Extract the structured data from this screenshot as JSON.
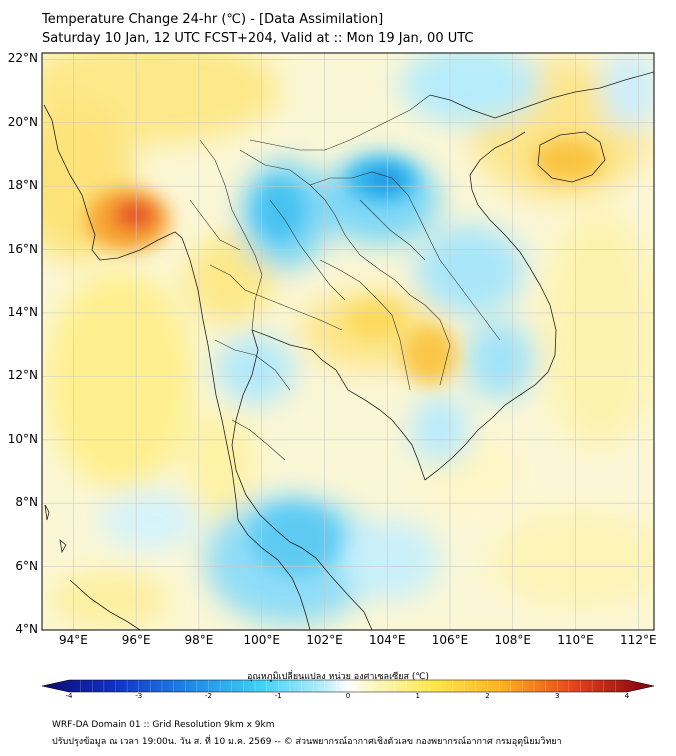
{
  "header": {
    "title": "Temperature Change 24-hr (℃) - [Data Assimilation]",
    "subtitle": "Saturday 10 Jan, 12 UTC FCST+204, Valid at :: Mon 19 Jan, 00 UTC"
  },
  "axes": {
    "lat_labels": [
      "22°N",
      "20°N",
      "18°N",
      "16°N",
      "14°N",
      "12°N",
      "10°N",
      "8°N",
      "6°N",
      "4°N"
    ],
    "lon_labels": [
      "94°E",
      "96°E",
      "98°E",
      "100°E",
      "102°E",
      "104°E",
      "106°E",
      "108°E",
      "110°E",
      "112°E"
    ],
    "lat_range": [
      4,
      22.2
    ],
    "lon_range": [
      93,
      112.5
    ],
    "grid": true
  },
  "colorbar": {
    "title": "อุณหภูมิเปลี่ยนแปลง หน่วย องศาเซลเซียส (℃)",
    "ticks": [
      "-4",
      "-3",
      "-2",
      "-1",
      "0",
      "1",
      "2",
      "3",
      "4"
    ],
    "range": [
      -4,
      4
    ]
  },
  "field": {
    "variable": "24-hr temperature change",
    "units": "℃",
    "notable_features": [
      {
        "lon": 96.0,
        "lat": 16.9,
        "value": 2.8
      },
      {
        "lon": 103.8,
        "lat": 18.2,
        "value": -2.2
      },
      {
        "lon": 101.0,
        "lat": 17.0,
        "value": -1.5
      },
      {
        "lon": 109.8,
        "lat": 18.6,
        "value": 1.8
      },
      {
        "lon": 105.8,
        "lat": 12.6,
        "value": 1.7
      },
      {
        "lon": 101.2,
        "lat": 6.5,
        "value": -1.3
      }
    ]
  },
  "footer": {
    "line1": "WRF-DA Domain 01 :: Grid Resolution 9km x 9km",
    "line2": "ปรับปรุงข้อมูล ณ เวลา 19:00น. วัน ส. ที่ 10 ม.ค. 2569 -- © ส่วนพยากรณ์อากาศเชิงตัวเลข กองพยากรณ์อากาศ กรมอุตุนิยมวิทยา"
  }
}
